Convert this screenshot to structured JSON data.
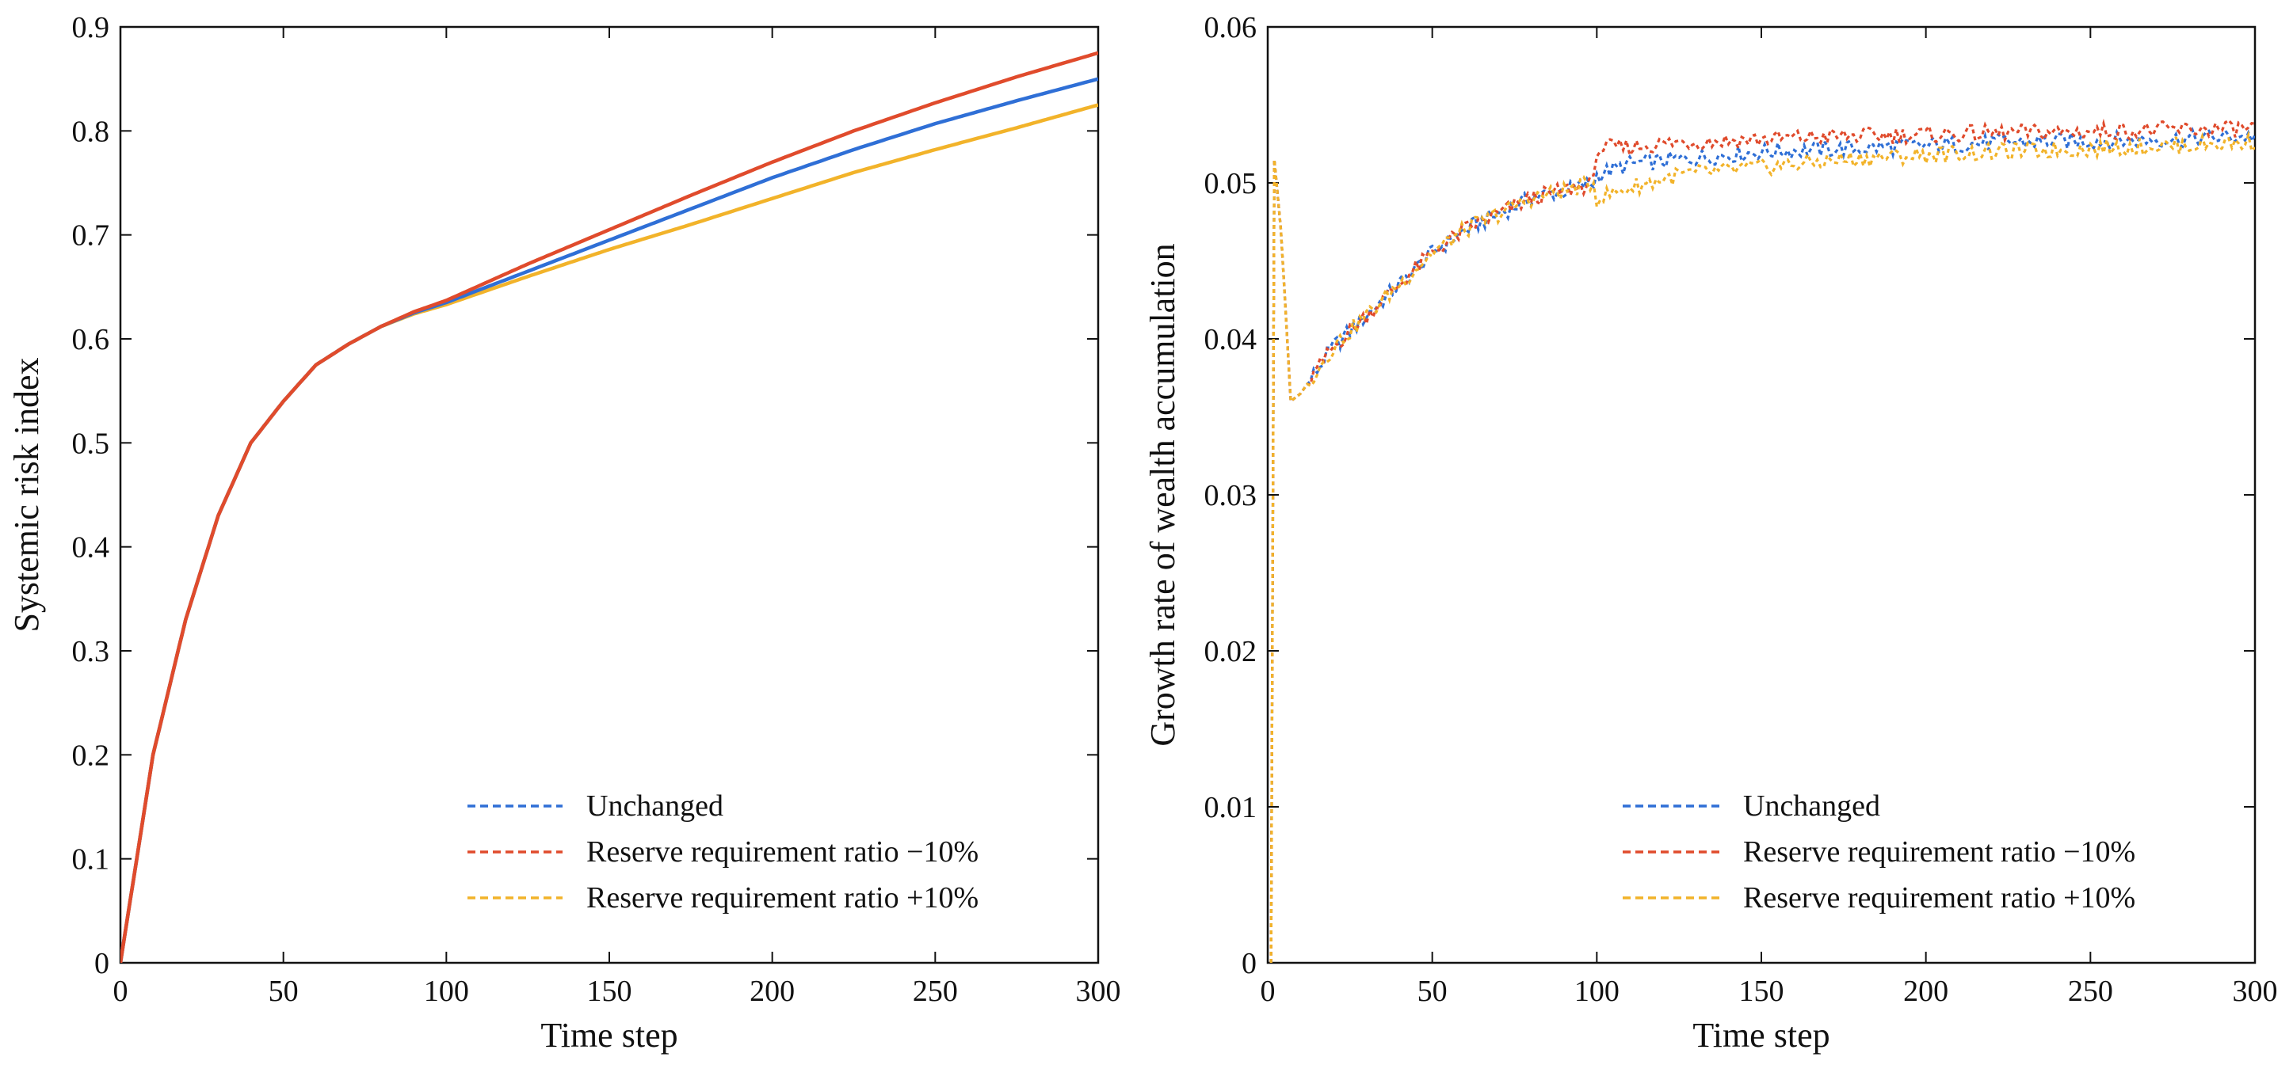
{
  "colors": {
    "unchanged": "#2f6fd6",
    "minus10": "#e04b2c",
    "plus10": "#f2b32a",
    "axis": "#111111"
  },
  "chart_data": [
    {
      "type": "line",
      "title": "",
      "xlabel": "Time step",
      "ylabel": "Systemic risk index",
      "xlim": [
        0,
        300
      ],
      "ylim": [
        0,
        0.9
      ],
      "xticks": [
        0,
        50,
        100,
        150,
        200,
        250,
        300
      ],
      "yticks": [
        0,
        0.1,
        0.2,
        0.3,
        0.4,
        0.5,
        0.6,
        0.7,
        0.8,
        0.9
      ],
      "xtick_labels": [
        "0",
        "50",
        "100",
        "150",
        "200",
        "250",
        "300"
      ],
      "ytick_labels": [
        "0",
        "0.1",
        "0.2",
        "0.3",
        "0.4",
        "0.5",
        "0.6",
        "0.7",
        "0.8",
        "0.9"
      ],
      "legend_position": "bottom-right",
      "x": [
        0,
        10,
        20,
        30,
        40,
        50,
        60,
        70,
        80,
        90,
        100,
        125,
        150,
        175,
        200,
        225,
        250,
        275,
        300
      ],
      "series": [
        {
          "name": "Unchanged",
          "color_key": "unchanged",
          "style": "solid",
          "values": [
            0,
            0.2,
            0.33,
            0.43,
            0.5,
            0.54,
            0.575,
            0.595,
            0.612,
            0.625,
            0.635,
            0.665,
            0.695,
            0.725,
            0.755,
            0.782,
            0.807,
            0.829,
            0.85
          ]
        },
        {
          "name": "Reserve requirement ratio −10%",
          "color_key": "minus10",
          "style": "solid",
          "values": [
            0,
            0.2,
            0.33,
            0.43,
            0.5,
            0.54,
            0.575,
            0.595,
            0.612,
            0.626,
            0.637,
            0.672,
            0.705,
            0.738,
            0.77,
            0.8,
            0.827,
            0.852,
            0.875
          ]
        },
        {
          "name": "Reserve requirement ratio +10%",
          "color_key": "plus10",
          "style": "solid",
          "values": [
            0,
            0.2,
            0.33,
            0.43,
            0.5,
            0.54,
            0.575,
            0.595,
            0.612,
            0.624,
            0.633,
            0.66,
            0.686,
            0.71,
            0.735,
            0.76,
            0.782,
            0.803,
            0.825
          ]
        }
      ]
    },
    {
      "type": "line",
      "title": "",
      "xlabel": "Time step",
      "ylabel": "Growth rate of wealth accumulation",
      "xlim": [
        0,
        300
      ],
      "ylim": [
        0,
        0.06
      ],
      "xticks": [
        0,
        50,
        100,
        150,
        200,
        250,
        300
      ],
      "yticks": [
        0,
        0.01,
        0.02,
        0.03,
        0.04,
        0.05,
        0.06
      ],
      "xtick_labels": [
        "0",
        "50",
        "100",
        "150",
        "200",
        "250",
        "300"
      ],
      "ytick_labels": [
        "0",
        "0.01",
        "0.02",
        "0.03",
        "0.04",
        "0.05",
        "0.06"
      ],
      "legend_position": "bottom-right",
      "x": [
        1,
        2,
        4,
        7,
        10,
        15,
        20,
        30,
        40,
        50,
        60,
        70,
        80,
        90,
        99,
        100,
        110,
        125,
        150,
        175,
        200,
        225,
        250,
        275,
        300
      ],
      "series": [
        {
          "name": "Unchanged",
          "color_key": "unchanged",
          "style": "dotted",
          "values": [
            0,
            0.0515,
            0.047,
            0.036,
            0.0365,
            0.038,
            0.0395,
            0.0415,
            0.0435,
            0.0455,
            0.047,
            0.048,
            0.049,
            0.0495,
            0.05,
            0.0505,
            0.0512,
            0.0515,
            0.052,
            0.0522,
            0.0524,
            0.0526,
            0.0527,
            0.0528,
            0.053
          ]
        },
        {
          "name": "Reserve requirement ratio −10%",
          "color_key": "minus10",
          "style": "dotted",
          "values": [
            0,
            0.0515,
            0.047,
            0.036,
            0.0365,
            0.038,
            0.0395,
            0.0415,
            0.0435,
            0.0455,
            0.047,
            0.048,
            0.049,
            0.0495,
            0.05,
            0.0522,
            0.0523,
            0.0526,
            0.0528,
            0.053,
            0.0531,
            0.0532,
            0.0533,
            0.0534,
            0.0535
          ]
        },
        {
          "name": "Reserve requirement ratio +10%",
          "color_key": "plus10",
          "style": "dotted",
          "values": [
            0,
            0.0515,
            0.047,
            0.036,
            0.0365,
            0.038,
            0.0395,
            0.0415,
            0.0435,
            0.0455,
            0.047,
            0.048,
            0.049,
            0.0495,
            0.05,
            0.049,
            0.0497,
            0.0505,
            0.051,
            0.0515,
            0.0518,
            0.052,
            0.0522,
            0.0524,
            0.0526
          ]
        }
      ]
    }
  ]
}
